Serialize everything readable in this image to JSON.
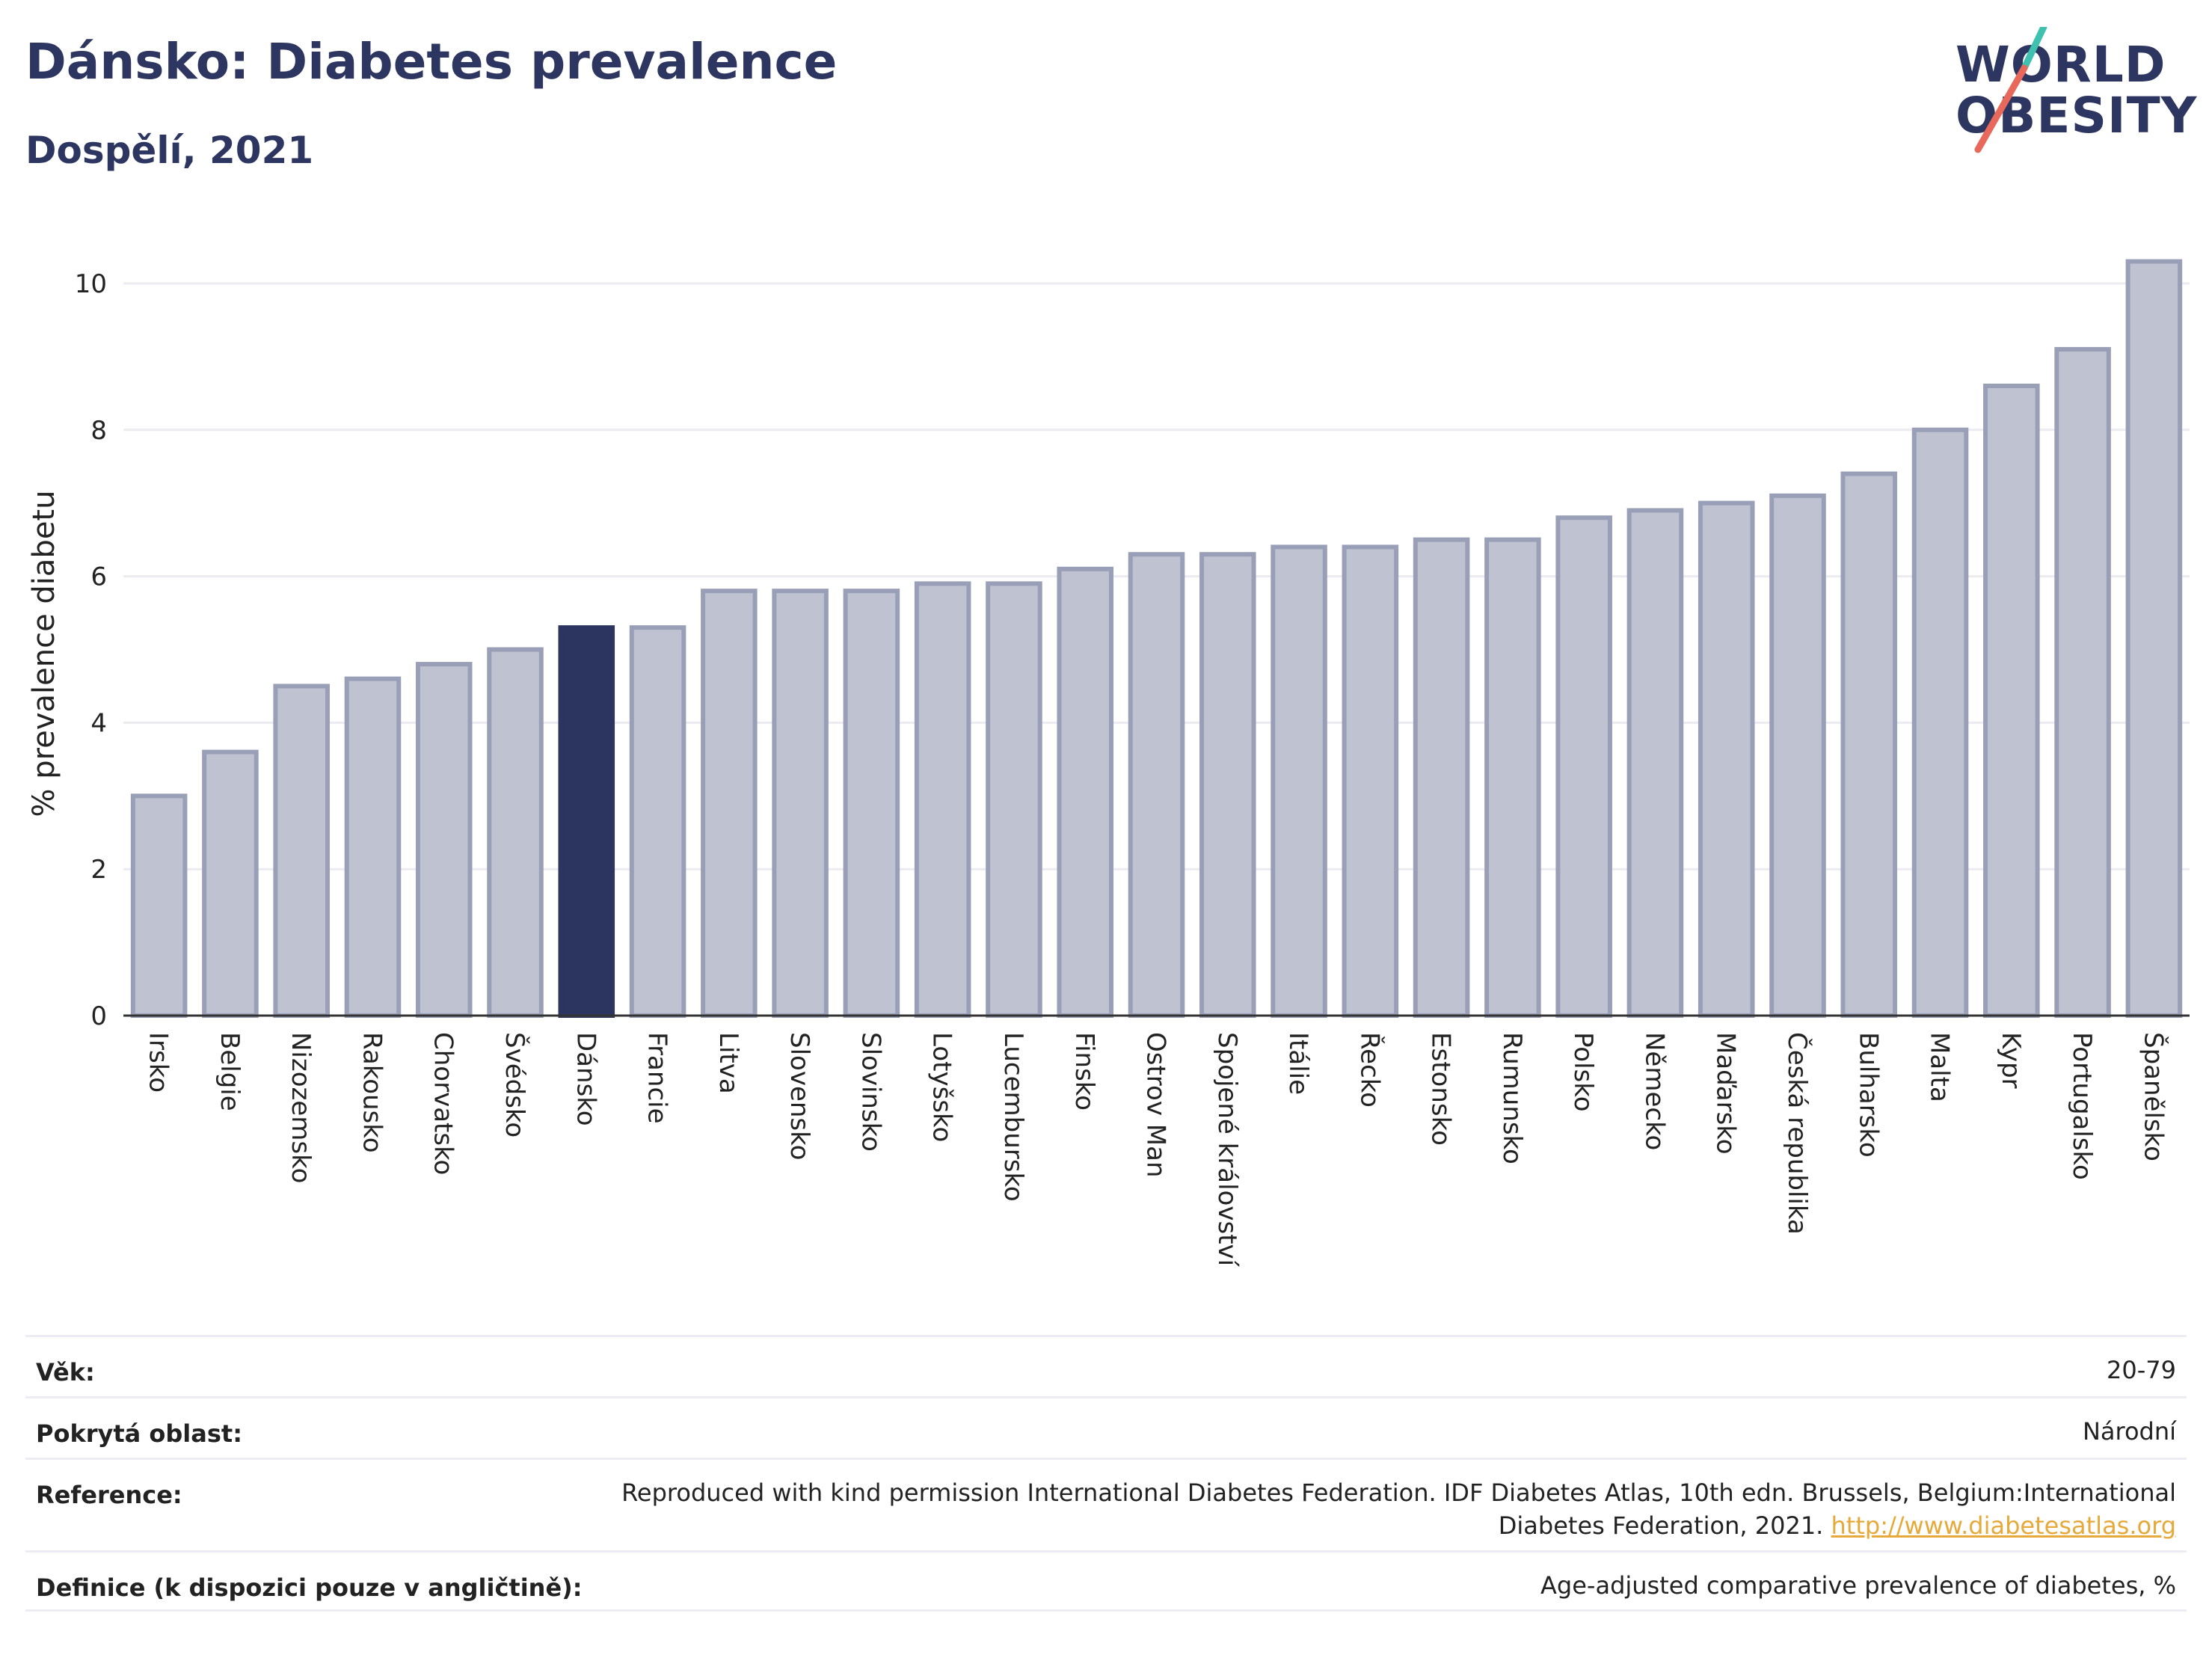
{
  "header": {
    "title": "Dánsko: Diabetes prevalence",
    "subtitle": "Dospělí, 2021"
  },
  "logo": {
    "line1": "WORLD",
    "line2": "OBESITY",
    "slash_colors": [
      "#3fc1b0",
      "#e8695c"
    ]
  },
  "chart_data": {
    "type": "bar",
    "categories": [
      "Irsko",
      "Belgie",
      "Nizozemsko",
      "Rakousko",
      "Chorvatsko",
      "Švédsko",
      "Dánsko",
      "Francie",
      "Litva",
      "Slovensko",
      "Slovinsko",
      "Lotyšsko",
      "Lucembursko",
      "Finsko",
      "Ostrov Man",
      "Spojené království",
      "Itálie",
      "Řecko",
      "Estonsko",
      "Rumunsko",
      "Polsko",
      "Německo",
      "Maďarsko",
      "Česká republika",
      "Bulharsko",
      "Malta",
      "Kypr",
      "Portugalsko",
      "Španělsko"
    ],
    "values": [
      3.0,
      3.6,
      4.5,
      4.6,
      4.8,
      5.0,
      5.3,
      5.3,
      5.8,
      5.8,
      5.8,
      5.9,
      5.9,
      6.1,
      6.3,
      6.3,
      6.4,
      6.4,
      6.5,
      6.5,
      6.8,
      6.9,
      7.0,
      7.1,
      7.4,
      8.0,
      8.6,
      9.1,
      10.3
    ],
    "highlight": "Dánsko",
    "ylabel": "% prevalence diabetu",
    "xlabel": "",
    "ylim": [
      0,
      10.5
    ],
    "yticks": [
      0,
      2,
      4,
      6,
      8,
      10
    ],
    "grid": true,
    "colors": {
      "bar": "#bfc2d0",
      "bar_border": "#9a9fb8",
      "highlight": "#2b3560",
      "grid": "#ebebf0",
      "axis": "#333333"
    }
  },
  "footer": {
    "rows": [
      {
        "key": "Věk:",
        "value": "20-79"
      },
      {
        "key": "Pokrytá oblast:",
        "value": "Národní"
      },
      {
        "key": "Reference:",
        "value": "Reproduced with kind permission International Diabetes Federation.  IDF Diabetes Atlas, 10th edn. Brussels, Belgium:International",
        "value2": "Diabetes Federation, 2021. ",
        "link": "http://www.diabetesatlas.org"
      },
      {
        "key": "Definice (k dispozici pouze v angličtině):",
        "value": "Age-adjusted comparative prevalence of diabetes, %"
      }
    ]
  }
}
